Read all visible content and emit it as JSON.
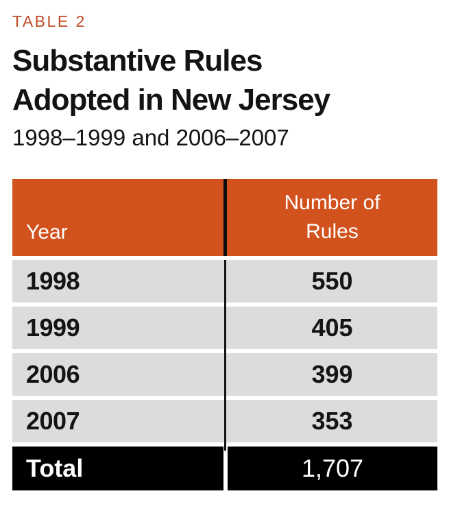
{
  "figure": {
    "label": "TABLE 2",
    "title_line1": "Substantive Rules",
    "title_line2": "Adopted in New Jersey",
    "subtitle": "1998–1999 and 2006–2007"
  },
  "table": {
    "header": {
      "year_label": "Year",
      "rules_label": "Number of Rules"
    },
    "rows": [
      {
        "year": "1998",
        "value": "550"
      },
      {
        "year": "1999",
        "value": "405"
      },
      {
        "year": "2006",
        "value": "399"
      },
      {
        "year": "2007",
        "value": "353"
      }
    ],
    "total": {
      "label": "Total",
      "value": "1,707"
    }
  },
  "colors": {
    "accent_orange": "#D2521E",
    "label_orange": "#BF4B26",
    "row_gray": "#DCDDDB",
    "total_black": "#000000",
    "text_black": "#141414",
    "text_white": "#FFFFFF"
  },
  "chart_data": {
    "type": "table",
    "title": "Substantive Rules Adopted in New Jersey",
    "subtitle": "1998–1999 and 2006–2007",
    "figure_label": "TABLE 2",
    "columns": [
      "Year",
      "Number of Rules"
    ],
    "rows": [
      [
        "1998",
        550
      ],
      [
        "1999",
        405
      ],
      [
        "2006",
        399
      ],
      [
        "2007",
        353
      ]
    ],
    "total_row": [
      "Total",
      1707
    ]
  }
}
